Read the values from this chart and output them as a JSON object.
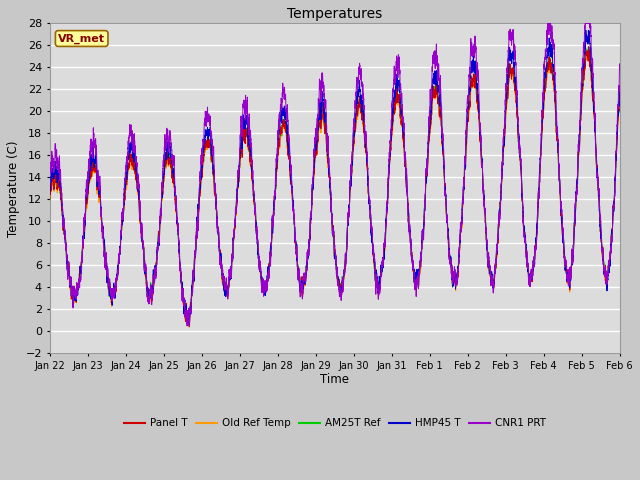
{
  "title": "Temperatures",
  "ylabel": "Temperature (C)",
  "xlabel": "Time",
  "ylim": [
    -2,
    28
  ],
  "series": {
    "Panel T": "#cc0000",
    "Old Ref Temp": "#ff9900",
    "AM25T Ref": "#00cc00",
    "HMP45 T": "#0000cc",
    "CNR1 PRT": "#9900cc"
  },
  "annotation_text": "VR_met",
  "annotation_bg": "#ffff99",
  "annotation_border": "#996600",
  "x_tick_labels": [
    "Jan 22",
    "Jan 23",
    "Jan 24",
    "Jan 25",
    "Jan 26",
    "Jan 27",
    "Jan 28",
    "Jan 29",
    "Jan 30",
    "Jan 31",
    "Feb 1",
    "Feb 2",
    "Feb 3",
    "Feb 4",
    "Feb 5",
    "Feb 6"
  ],
  "num_points": 5000,
  "num_days": 15
}
